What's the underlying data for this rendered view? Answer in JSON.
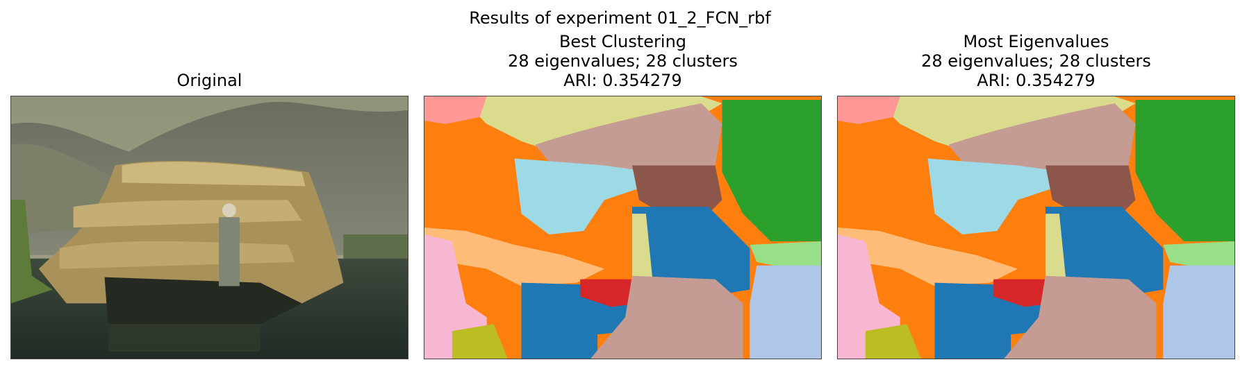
{
  "figure": {
    "suptitle": "Results of experiment 01_2_FCN_rbf"
  },
  "panels": [
    {
      "id": "original",
      "title_lines": [
        "Original"
      ],
      "image": "photo of man standing on a small boat loaded with bundles of dry reeds on a lake, mountains in background"
    },
    {
      "id": "best-clustering",
      "title_lines": [
        "Best Clustering",
        "28 eigenvalues; 28 clusters",
        "ARI: 0.354279"
      ],
      "image": "segmentation map with 28 color-coded clusters"
    },
    {
      "id": "most-eigenvalues",
      "title_lines": [
        "Most Eigenvalues",
        "28 eigenvalues; 28 clusters",
        "ARI: 0.354279"
      ],
      "image": "segmentation map with 28 color-coded clusters"
    }
  ],
  "colors": {
    "orange": "#ff7f0e",
    "green": "#2ca02c",
    "light_green": "#98df8a",
    "blue": "#1f77b4",
    "light_blue": "#aec7e8",
    "red": "#d62728",
    "brown": "#8c564b",
    "tan": "#c49c94",
    "pink": "#f7b6d2",
    "salmon": "#ff9896",
    "peach": "#ffbb78",
    "khaki": "#dbdb8d",
    "olive": "#bcbd22",
    "cyan": "#9edae5",
    "lavender": "#c5b0d5"
  }
}
